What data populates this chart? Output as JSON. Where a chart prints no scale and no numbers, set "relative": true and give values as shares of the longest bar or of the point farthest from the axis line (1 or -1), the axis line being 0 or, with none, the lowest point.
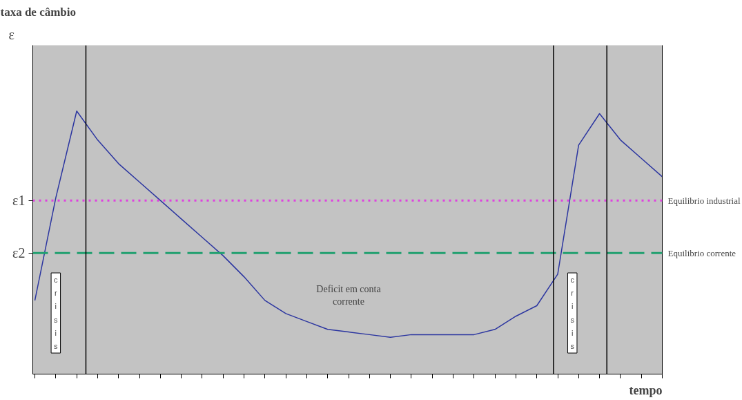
{
  "chart_data": {
    "type": "line",
    "title": "taxa de câmbio",
    "xlabel": "tempo",
    "relative": true,
    "grid": false,
    "marker": "none",
    "line_style": "solid",
    "categories": [
      null,
      null,
      null,
      null,
      null,
      null,
      null,
      null,
      null,
      null,
      null,
      null,
      null,
      null,
      null,
      null,
      null,
      null,
      null,
      null,
      null,
      null,
      null,
      null,
      null,
      null,
      null,
      null,
      null,
      null,
      null
    ],
    "series": [
      {
        "color": "#2b35a0",
        "values": [
          0.28,
          0.67,
          1.0,
          0.89,
          0.8,
          0.73,
          0.66,
          0.59,
          0.52,
          0.45,
          0.37,
          0.28,
          0.23,
          0.2,
          0.17,
          0.16,
          0.15,
          0.14,
          0.15,
          0.15,
          0.15,
          0.15,
          0.17,
          0.22,
          0.26,
          0.38,
          0.87,
          0.99,
          0.89,
          0.82,
          0.75
        ]
      }
    ],
    "ref_lines": [
      {
        "axis": "y",
        "value": 0.66,
        "label": "Equilibrio industrial",
        "color": "#e040e0",
        "line_style": "dotted"
      },
      {
        "axis": "y",
        "value": 0.46,
        "label": "Equilibrio corrente",
        "color": "#22a070",
        "line_style": "dashed"
      }
    ],
    "annotations": [
      "ε",
      "ε1",
      "ε2",
      "crisis",
      "crisis",
      "Deficit em conta corrente"
    ]
  }
}
